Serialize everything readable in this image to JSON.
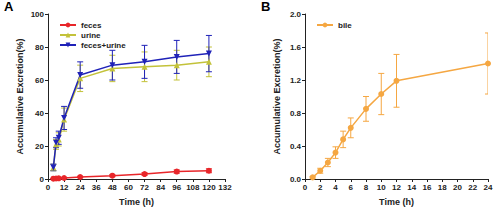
{
  "chart_data": [
    {
      "type": "line",
      "title": "A",
      "xlabel": "Time (h)",
      "ylabel": "Accumulative Excretion(%)",
      "xlim": [
        0,
        132
      ],
      "xticks": [
        0,
        12,
        24,
        36,
        48,
        60,
        72,
        84,
        96,
        108,
        120,
        132
      ],
      "ylim": [
        0,
        100
      ],
      "yticks": [
        0,
        20,
        40,
        60,
        80,
        100
      ],
      "grid": false,
      "legend": "upper left",
      "series": [
        {
          "name": "feces",
          "color": "#e8262a",
          "marker": "circle",
          "x": [
            4,
            6,
            8,
            12,
            24,
            48,
            72,
            96,
            120
          ],
          "values": [
            0.2,
            0.3,
            0.4,
            0.6,
            1.2,
            2,
            3,
            4.5,
            5
          ],
          "errors": [
            0.1,
            0.1,
            0.2,
            0.2,
            0.4,
            0.6,
            0.8,
            1,
            1.2
          ]
        },
        {
          "name": "urine",
          "color": "#c3c23a",
          "marker": "triangle",
          "x": [
            4,
            6,
            8,
            12,
            24,
            48,
            72,
            96,
            120
          ],
          "values": [
            7,
            21,
            24,
            36,
            61,
            67,
            68,
            69,
            71
          ],
          "errors": [
            2,
            3,
            4,
            7,
            8,
            8,
            9,
            9,
            9
          ]
        },
        {
          "name": "feces+urine",
          "color": "#1f22b8",
          "marker": "inverted_triangle",
          "x": [
            4,
            6,
            8,
            12,
            24,
            48,
            72,
            96,
            120
          ],
          "values": [
            7,
            22,
            25,
            37,
            63,
            69,
            71,
            74,
            76
          ],
          "errors": [
            2,
            3,
            4,
            7,
            8,
            9,
            10,
            10,
            11
          ]
        }
      ]
    },
    {
      "type": "line",
      "title": "B",
      "xlabel": "Time (h)",
      "ylabel": "Accumulative Excretion(%)",
      "xlim": [
        0,
        24
      ],
      "xticks": [
        0,
        2,
        4,
        6,
        8,
        10,
        12,
        14,
        16,
        18,
        20,
        22,
        24
      ],
      "ylim": [
        0,
        2
      ],
      "yticks": [
        {
          "value": 0,
          "label": "0.0"
        },
        0.4,
        0.8,
        1.2,
        1.6,
        {
          "value": 2,
          "label": "2.0"
        }
      ],
      "grid": false,
      "legend": "upper left",
      "series": [
        {
          "name": "bile",
          "color": "#f5a742",
          "marker": "circle",
          "x": [
            1,
            2,
            3,
            4,
            5,
            6,
            8,
            10,
            12,
            24
          ],
          "values": [
            0.02,
            0.1,
            0.2,
            0.32,
            0.48,
            0.62,
            0.85,
            1.03,
            1.19,
            1.4
          ],
          "errors": [
            0.01,
            0.03,
            0.05,
            0.07,
            0.1,
            0.12,
            0.15,
            0.25,
            0.32,
            0.37
          ]
        }
      ]
    }
  ]
}
